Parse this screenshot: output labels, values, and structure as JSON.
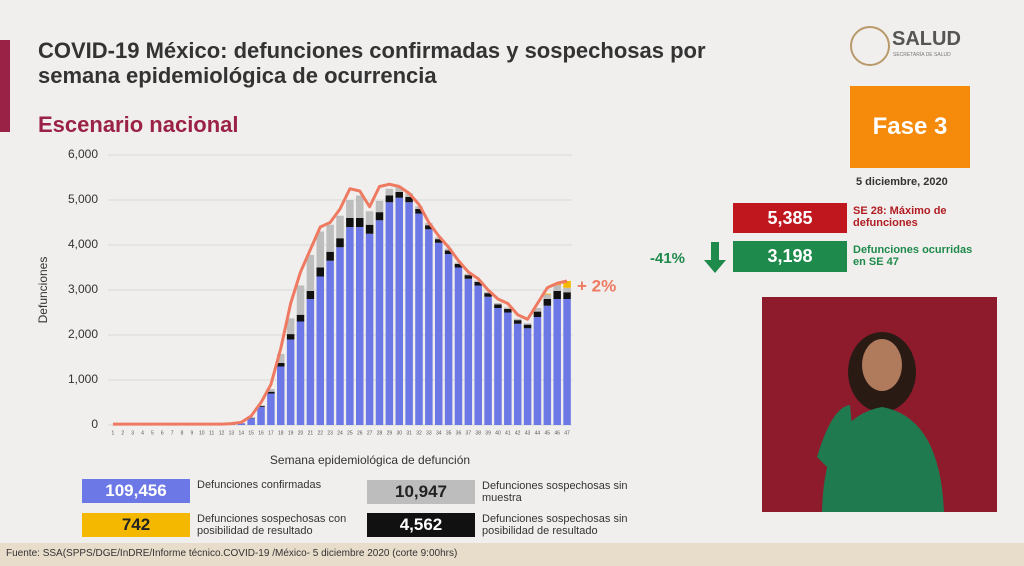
{
  "slide": {
    "title": "COVID-19 México: defunciones confirmadas y sospechosas por semana epidemiológica de ocurrencia",
    "subtitle": "Escenario nacional",
    "logo": "SALUD",
    "logo_sub": "SECRETARÍA DE SALUD",
    "phase": "Fase 3",
    "date": "5 diciembre, 2020",
    "max_value": "5,385",
    "max_label": "SE 28: Máximo de defunciones",
    "change": "-41%",
    "last_value": "3,198",
    "last_label": "Defunciones ocurridas en SE 47",
    "source": "Fuente: SSA(SPPS/DGE/InDRE/Informe técnico.COVID-19 /México- 5 diciembre 2020 (corte 9:00hrs)"
  },
  "chart_data": {
    "type": "stacked_bar",
    "y_label": "Defunciones",
    "x_label": "Semana epidemiológica de defunción",
    "annotation": "+ 2%",
    "categories": [
      "1",
      "2",
      "3",
      "4",
      "5",
      "6",
      "7",
      "8",
      "9",
      "10",
      "11",
      "12",
      "13",
      "14",
      "15",
      "16",
      "17",
      "18",
      "19",
      "20",
      "21",
      "22",
      "23",
      "24",
      "25",
      "26",
      "27",
      "28",
      "29",
      "30",
      "31",
      "32",
      "33",
      "34",
      "35",
      "36",
      "37",
      "38",
      "39",
      "40",
      "41",
      "42",
      "43",
      "44",
      "45",
      "46",
      "47"
    ],
    "ylim": [
      0,
      6000
    ],
    "yticks": [
      0,
      {
        "value": 1000,
        "label": "1,000"
      },
      {
        "value": 2000,
        "label": "2,000"
      },
      {
        "value": 3000,
        "label": "3,000"
      },
      {
        "value": 4000,
        "label": "4,000"
      },
      {
        "value": 5000,
        "label": "5,000"
      },
      {
        "value": 6000,
        "label": "6,000"
      }
    ],
    "grid": true,
    "series": [
      {
        "name": "Defunciones confirmadas",
        "color": "#6b78e5",
        "total": 109456,
        "total_label": "109,456",
        "values": [
          0,
          0,
          0,
          0,
          0,
          0,
          0,
          0,
          0,
          0,
          0,
          0,
          10,
          40,
          150,
          400,
          700,
          1300,
          1900,
          2300,
          2800,
          3300,
          3650,
          3950,
          4400,
          4400,
          4250,
          4550,
          4950,
          5050,
          4950,
          4700,
          4350,
          4050,
          3800,
          3500,
          3250,
          3100,
          2850,
          2600,
          2500,
          2250,
          2150,
          2400,
          2650,
          2800,
          2800
        ]
      },
      {
        "name": "Defunciones sospechosas sin posibilidad de resultado",
        "color": "#111111",
        "total": 4562,
        "total_label": "4,562",
        "values": [
          0,
          0,
          0,
          0,
          0,
          0,
          0,
          0,
          0,
          0,
          0,
          0,
          0,
          0,
          10,
          20,
          40,
          80,
          120,
          150,
          180,
          200,
          200,
          200,
          200,
          200,
          200,
          180,
          150,
          130,
          120,
          100,
          90,
          80,
          80,
          80,
          80,
          80,
          80,
          80,
          80,
          80,
          80,
          120,
          150,
          180,
          150
        ]
      },
      {
        "name": "Defunciones sospechosas sin muestra",
        "color": "#bdbdbd",
        "total": 10947,
        "total_label": "10,947",
        "values": [
          0,
          0,
          0,
          0,
          0,
          0,
          0,
          0,
          0,
          0,
          0,
          0,
          0,
          0,
          0,
          20,
          60,
          200,
          350,
          650,
          800,
          800,
          600,
          500,
          400,
          500,
          300,
          250,
          150,
          100,
          80,
          60,
          50,
          40,
          40,
          30,
          30,
          30,
          30,
          30,
          30,
          30,
          30,
          80,
          100,
          130,
          100
        ]
      },
      {
        "name": "Defunciones sospechosas con posibilidad de resultado",
        "color": "#f5b800",
        "total": 742,
        "total_label": "742",
        "values": [
          0,
          0,
          0,
          0,
          0,
          0,
          0,
          0,
          0,
          0,
          0,
          0,
          0,
          0,
          0,
          0,
          0,
          0,
          0,
          0,
          0,
          0,
          0,
          0,
          0,
          0,
          0,
          0,
          0,
          0,
          0,
          0,
          0,
          0,
          0,
          0,
          0,
          0,
          0,
          0,
          0,
          0,
          0,
          0,
          20,
          40,
          150
        ]
      }
    ],
    "line": {
      "color": "#ee7a62",
      "values": [
        20,
        20,
        20,
        20,
        20,
        20,
        20,
        20,
        20,
        20,
        20,
        20,
        30,
        60,
        200,
        500,
        900,
        1700,
        2700,
        3400,
        3900,
        4400,
        4500,
        4800,
        5250,
        5200,
        4850,
        5300,
        5350,
        5300,
        5150,
        4900,
        4500,
        4200,
        3950,
        3650,
        3400,
        3250,
        3000,
        2800,
        2700,
        2450,
        2350,
        2700,
        3050,
        3150,
        3200
      ]
    }
  }
}
